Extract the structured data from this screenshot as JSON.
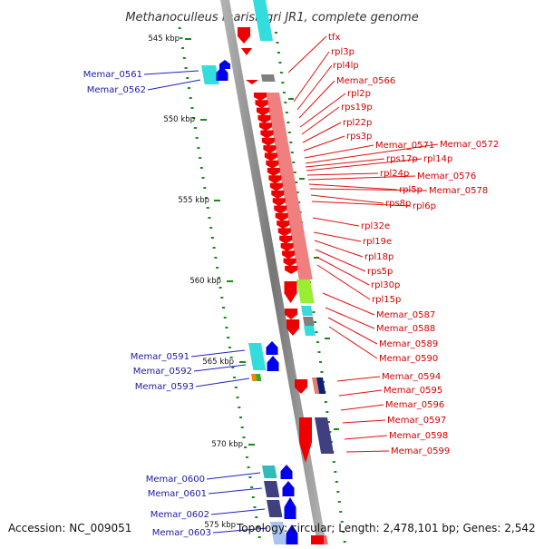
{
  "title": "Methanoculleus marisnigri JR1, complete genome",
  "footer": {
    "accession": "Accession: NC_009051",
    "topology": "Topology: circular; Length: 2,478,101 bp; Genes: 2,542"
  },
  "ticks": [
    "545 kbp",
    "550 kbp",
    "555 kbp",
    "560 kbp",
    "565 kbp",
    "570 kbp",
    "575 kbp"
  ],
  "left_labels": [
    "Memar_0561",
    "Memar_0562",
    "Memar_0591",
    "Memar_0592",
    "Memar_0593",
    "Memar_0600",
    "Memar_0601",
    "Memar_0602",
    "Memar_0603"
  ],
  "right_labels": [
    "tfx",
    "rpl3p",
    "rpl4lp",
    "Memar_0566",
    "rpl2p",
    "rps19p",
    "rpl22p",
    "rps3p",
    "Memar_0571",
    "Memar_0572",
    "rps17p",
    "rpl14p",
    "rpl24p",
    "Memar_0576",
    "rpl5p",
    "Memar_0578",
    "rps8p",
    "rpl6p",
    "rpl32e",
    "rpl19e",
    "rpl18p",
    "rps5p",
    "rpl30p",
    "rpl15p",
    "Memar_0587",
    "Memar_0588",
    "Memar_0589",
    "Memar_0590",
    "Memar_0594",
    "Memar_0595",
    "Memar_0596",
    "Memar_0597",
    "Memar_0598",
    "Memar_0599"
  ],
  "colors": {
    "forward_gene": "#0000ee",
    "reverse_gene": "#ee0000",
    "left_label": "#1a1aa8",
    "right_label": "#d40000",
    "backbone": "#8c8c8c",
    "tick": "#1a8a1a",
    "cog_ribosomal": "#f08080",
    "cog_cyan": "#33dddd",
    "cog_navy": "#404080",
    "cog_green": "#99ee33",
    "cog_grey": "#808080"
  }
}
